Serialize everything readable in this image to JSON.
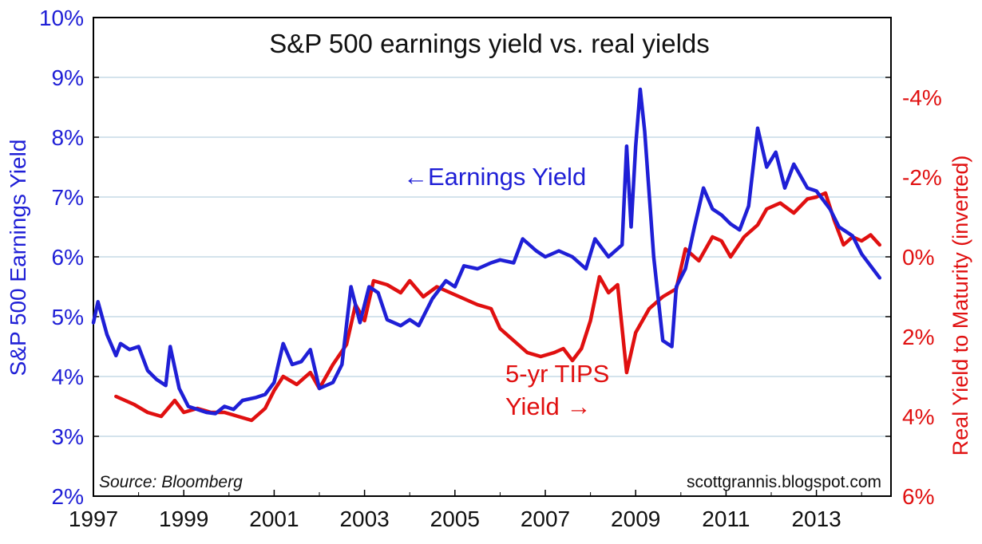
{
  "chart_data": {
    "type": "line",
    "title": "S&P 500 earnings yield vs. real yields",
    "ylabel_left": "S&P 500 Earnings Yield",
    "ylabel_right": "Real Yield to Maturity (inverted)",
    "ylim_left": [
      2,
      10
    ],
    "ylim_right": [
      6,
      -6
    ],
    "right_axis_inverted": true,
    "grid": true,
    "left_ticks": [
      "10%",
      "9%",
      "8%",
      "7%",
      "6%",
      "5%",
      "4%",
      "3%",
      "2%"
    ],
    "right_ticks": [
      "-4%",
      "-2%",
      "0%",
      "2%",
      "4%",
      "6%"
    ],
    "x_tick_labels": [
      "1997",
      "1999",
      "2001",
      "2003",
      "2005",
      "2007",
      "2009",
      "2011",
      "2013"
    ],
    "annotations": {
      "earnings": "←Earnings Yield",
      "tips_line1": "5-yr TIPS",
      "tips_line2": "Yield →",
      "source": "Source: Bloomberg",
      "site": "scottgrannis.blogspot.com"
    },
    "colors": {
      "earnings": "#1f1fd6",
      "tips": "#e01010",
      "grid": "#a9c7d9"
    },
    "series": [
      {
        "axis": "left",
        "color": "#1f1fd6",
        "points": [
          [
            1997.0,
            4.9
          ],
          [
            1997.1,
            5.25
          ],
          [
            1997.3,
            4.7
          ],
          [
            1997.5,
            4.35
          ],
          [
            1997.6,
            4.55
          ],
          [
            1997.8,
            4.45
          ],
          [
            1998.0,
            4.5
          ],
          [
            1998.2,
            4.1
          ],
          [
            1998.4,
            3.95
          ],
          [
            1998.6,
            3.85
          ],
          [
            1998.7,
            4.5
          ],
          [
            1998.9,
            3.8
          ],
          [
            1999.1,
            3.5
          ],
          [
            1999.3,
            3.45
          ],
          [
            1999.5,
            3.4
          ],
          [
            1999.7,
            3.38
          ],
          [
            1999.9,
            3.5
          ],
          [
            2000.1,
            3.45
          ],
          [
            2000.3,
            3.6
          ],
          [
            2000.6,
            3.65
          ],
          [
            2000.8,
            3.7
          ],
          [
            2001.0,
            3.9
          ],
          [
            2001.2,
            4.55
          ],
          [
            2001.4,
            4.2
          ],
          [
            2001.6,
            4.25
          ],
          [
            2001.8,
            4.45
          ],
          [
            2002.0,
            3.8
          ],
          [
            2002.3,
            3.9
          ],
          [
            2002.5,
            4.2
          ],
          [
            2002.7,
            5.5
          ],
          [
            2002.9,
            4.9
          ],
          [
            2003.1,
            5.5
          ],
          [
            2003.3,
            5.4
          ],
          [
            2003.5,
            4.95
          ],
          [
            2003.8,
            4.85
          ],
          [
            2004.0,
            4.95
          ],
          [
            2004.2,
            4.85
          ],
          [
            2004.5,
            5.3
          ],
          [
            2004.8,
            5.6
          ],
          [
            2005.0,
            5.5
          ],
          [
            2005.2,
            5.85
          ],
          [
            2005.5,
            5.8
          ],
          [
            2005.8,
            5.9
          ],
          [
            2006.0,
            5.95
          ],
          [
            2006.3,
            5.9
          ],
          [
            2006.5,
            6.3
          ],
          [
            2006.8,
            6.1
          ],
          [
            2007.0,
            6.0
          ],
          [
            2007.3,
            6.1
          ],
          [
            2007.6,
            6.0
          ],
          [
            2007.9,
            5.8
          ],
          [
            2008.1,
            6.3
          ],
          [
            2008.4,
            6.0
          ],
          [
            2008.7,
            6.2
          ],
          [
            2008.8,
            7.85
          ],
          [
            2008.9,
            6.5
          ],
          [
            2009.0,
            7.85
          ],
          [
            2009.1,
            8.8
          ],
          [
            2009.2,
            8.1
          ],
          [
            2009.4,
            6.0
          ],
          [
            2009.6,
            4.6
          ],
          [
            2009.8,
            4.5
          ],
          [
            2009.9,
            5.5
          ],
          [
            2010.1,
            5.8
          ],
          [
            2010.3,
            6.5
          ],
          [
            2010.5,
            7.15
          ],
          [
            2010.7,
            6.8
          ],
          [
            2010.9,
            6.7
          ],
          [
            2011.1,
            6.55
          ],
          [
            2011.3,
            6.45
          ],
          [
            2011.5,
            6.85
          ],
          [
            2011.7,
            8.15
          ],
          [
            2011.9,
            7.5
          ],
          [
            2012.1,
            7.75
          ],
          [
            2012.3,
            7.15
          ],
          [
            2012.5,
            7.55
          ],
          [
            2012.8,
            7.15
          ],
          [
            2013.0,
            7.1
          ],
          [
            2013.3,
            6.8
          ],
          [
            2013.5,
            6.5
          ],
          [
            2013.8,
            6.35
          ],
          [
            2014.0,
            6.05
          ],
          [
            2014.2,
            5.85
          ],
          [
            2014.4,
            5.65
          ]
        ]
      },
      {
        "axis": "right",
        "color": "#e01010",
        "points": [
          [
            1997.5,
            3.5
          ],
          [
            1997.7,
            3.6
          ],
          [
            1997.9,
            3.7
          ],
          [
            1998.2,
            3.9
          ],
          [
            1998.5,
            4.0
          ],
          [
            1998.8,
            3.6
          ],
          [
            1999.0,
            3.9
          ],
          [
            1999.3,
            3.8
          ],
          [
            1999.6,
            3.9
          ],
          [
            1999.9,
            3.9
          ],
          [
            2000.2,
            4.0
          ],
          [
            2000.5,
            4.1
          ],
          [
            2000.8,
            3.8
          ],
          [
            2001.0,
            3.35
          ],
          [
            2001.2,
            3.0
          ],
          [
            2001.5,
            3.2
          ],
          [
            2001.8,
            2.9
          ],
          [
            2002.0,
            3.3
          ],
          [
            2002.3,
            2.7
          ],
          [
            2002.6,
            2.2
          ],
          [
            2002.8,
            1.2
          ],
          [
            2003.0,
            1.6
          ],
          [
            2003.2,
            0.6
          ],
          [
            2003.5,
            0.7
          ],
          [
            2003.8,
            0.9
          ],
          [
            2004.0,
            0.6
          ],
          [
            2004.3,
            1.0
          ],
          [
            2004.6,
            0.75
          ],
          [
            2004.9,
            0.9
          ],
          [
            2005.2,
            1.05
          ],
          [
            2005.5,
            1.2
          ],
          [
            2005.8,
            1.3
          ],
          [
            2006.0,
            1.8
          ],
          [
            2006.3,
            2.1
          ],
          [
            2006.6,
            2.4
          ],
          [
            2006.9,
            2.5
          ],
          [
            2007.2,
            2.4
          ],
          [
            2007.4,
            2.3
          ],
          [
            2007.6,
            2.6
          ],
          [
            2007.8,
            2.3
          ],
          [
            2008.0,
            1.6
          ],
          [
            2008.2,
            0.5
          ],
          [
            2008.4,
            0.9
          ],
          [
            2008.6,
            0.7
          ],
          [
            2008.8,
            2.9
          ],
          [
            2009.0,
            1.9
          ],
          [
            2009.3,
            1.3
          ],
          [
            2009.6,
            1.0
          ],
          [
            2009.9,
            0.8
          ],
          [
            2010.1,
            -0.2
          ],
          [
            2010.4,
            0.1
          ],
          [
            2010.7,
            -0.5
          ],
          [
            2010.9,
            -0.4
          ],
          [
            2011.1,
            0.0
          ],
          [
            2011.4,
            -0.5
          ],
          [
            2011.7,
            -0.8
          ],
          [
            2011.9,
            -1.2
          ],
          [
            2012.2,
            -1.35
          ],
          [
            2012.5,
            -1.1
          ],
          [
            2012.8,
            -1.45
          ],
          [
            2013.0,
            -1.5
          ],
          [
            2013.2,
            -1.6
          ],
          [
            2013.4,
            -0.9
          ],
          [
            2013.6,
            -0.3
          ],
          [
            2013.8,
            -0.5
          ],
          [
            2014.0,
            -0.4
          ],
          [
            2014.2,
            -0.55
          ],
          [
            2014.4,
            -0.3
          ]
        ]
      }
    ]
  }
}
